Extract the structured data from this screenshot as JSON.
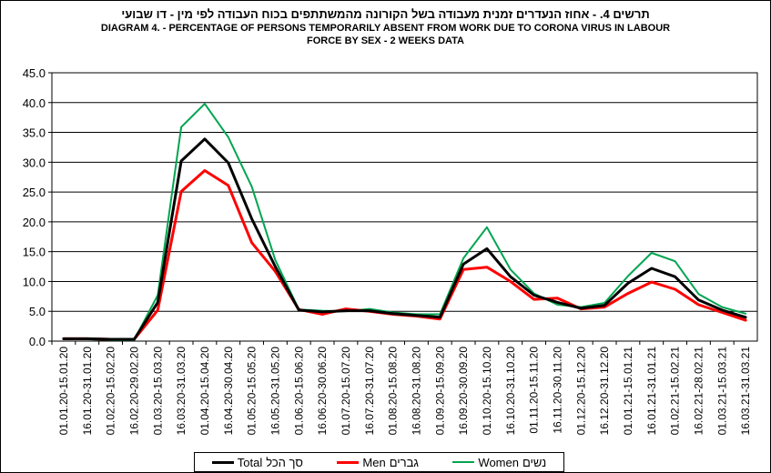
{
  "chart_data": {
    "type": "line",
    "title_he": "תרשים 4. - אחוז הנעדרים זמנית מעבודה בשל הקורונה מהמשתתפים בכוח העבודה לפי מין - דו שבועי",
    "title_en_line1": "DIAGRAM 4. - PERCENTAGE OF PERSONS TEMPORARILY ABSENT FROM WORK DUE TO CORONA VIRUS IN LABOUR",
    "title_en_line2": "FORCE BY SEX - 2 WEEKS DATA",
    "xlabel": "",
    "ylabel": "",
    "ylim": [
      0,
      45
    ],
    "yticks": [
      "0.0",
      "5.0",
      "10.0",
      "15.0",
      "20.0",
      "25.0",
      "30.0",
      "35.0",
      "40.0",
      "45.0"
    ],
    "grid": true,
    "legend_position": "bottom",
    "categories": [
      "01.01.20-15.01.20",
      "16.01.20-31.01.20",
      "01.02.20-15.02.20",
      "16.02.20-29.02.20",
      "01.03.20-15.03.20",
      "16.03.20-31.03.20",
      "01.04.20-15.04.20",
      "16.04.20-30.04.20",
      "01.05.20-15.05.20",
      "16.05.20-31.05.20",
      "01.06.20-15.06.20",
      "16.06.20-30.06.20",
      "01.07.20-15.07.20",
      "16.07.20-31.07.20",
      "01.08.20-15.08.20",
      "16.08.20-31.08.20",
      "01.09.20-15.09.20",
      "16.09.20-30.09.20",
      "01.10.20-15.10.20",
      "16.10.20-31.10.20",
      "01.11.20-15.11.20",
      "16.11.20-30.11.20",
      "01.12.20-15.12.20",
      "16.12.20-31.12.20",
      "01.01.21-15.01.21",
      "16.01.21-31.01.21",
      "01.02.21-15.02.21",
      "16.02.21-28.02.21",
      "01.03.21-15.03.21",
      "16.03.21-31.03.21"
    ],
    "series": [
      {
        "name_en": "Total",
        "name_he": "סך הכל",
        "color": "#000000",
        "values": [
          0.4,
          0.4,
          0.3,
          0.3,
          6.5,
          30.2,
          33.9,
          29.9,
          20.5,
          12.5,
          5.2,
          4.9,
          5.1,
          5.1,
          4.6,
          4.3,
          4.0,
          12.9,
          15.5,
          10.8,
          7.7,
          6.5,
          5.5,
          6.0,
          9.7,
          12.2,
          10.8,
          6.9,
          5.2,
          4.0
        ]
      },
      {
        "name_en": "Men",
        "name_he": "גברים",
        "color": "#ff0000",
        "values": [
          0.4,
          0.4,
          0.3,
          0.3,
          5.2,
          25.1,
          28.6,
          26.1,
          16.5,
          11.7,
          5.3,
          4.5,
          5.4,
          5.0,
          4.5,
          4.2,
          3.7,
          12.0,
          12.4,
          10.0,
          7.0,
          7.2,
          5.4,
          5.7,
          8.0,
          9.9,
          8.7,
          6.1,
          4.8,
          3.5
        ]
      },
      {
        "name_en": "Women",
        "name_he": "נשים",
        "color": "#00a550",
        "values": [
          0.3,
          0.3,
          0.2,
          0.2,
          7.7,
          35.9,
          39.8,
          34.2,
          25.9,
          13.6,
          5.3,
          5.1,
          5.0,
          5.4,
          4.8,
          4.5,
          4.5,
          13.9,
          19.1,
          12.0,
          8.0,
          6.1,
          5.7,
          6.4,
          10.9,
          14.8,
          13.4,
          7.9,
          5.7,
          4.6
        ]
      }
    ]
  }
}
